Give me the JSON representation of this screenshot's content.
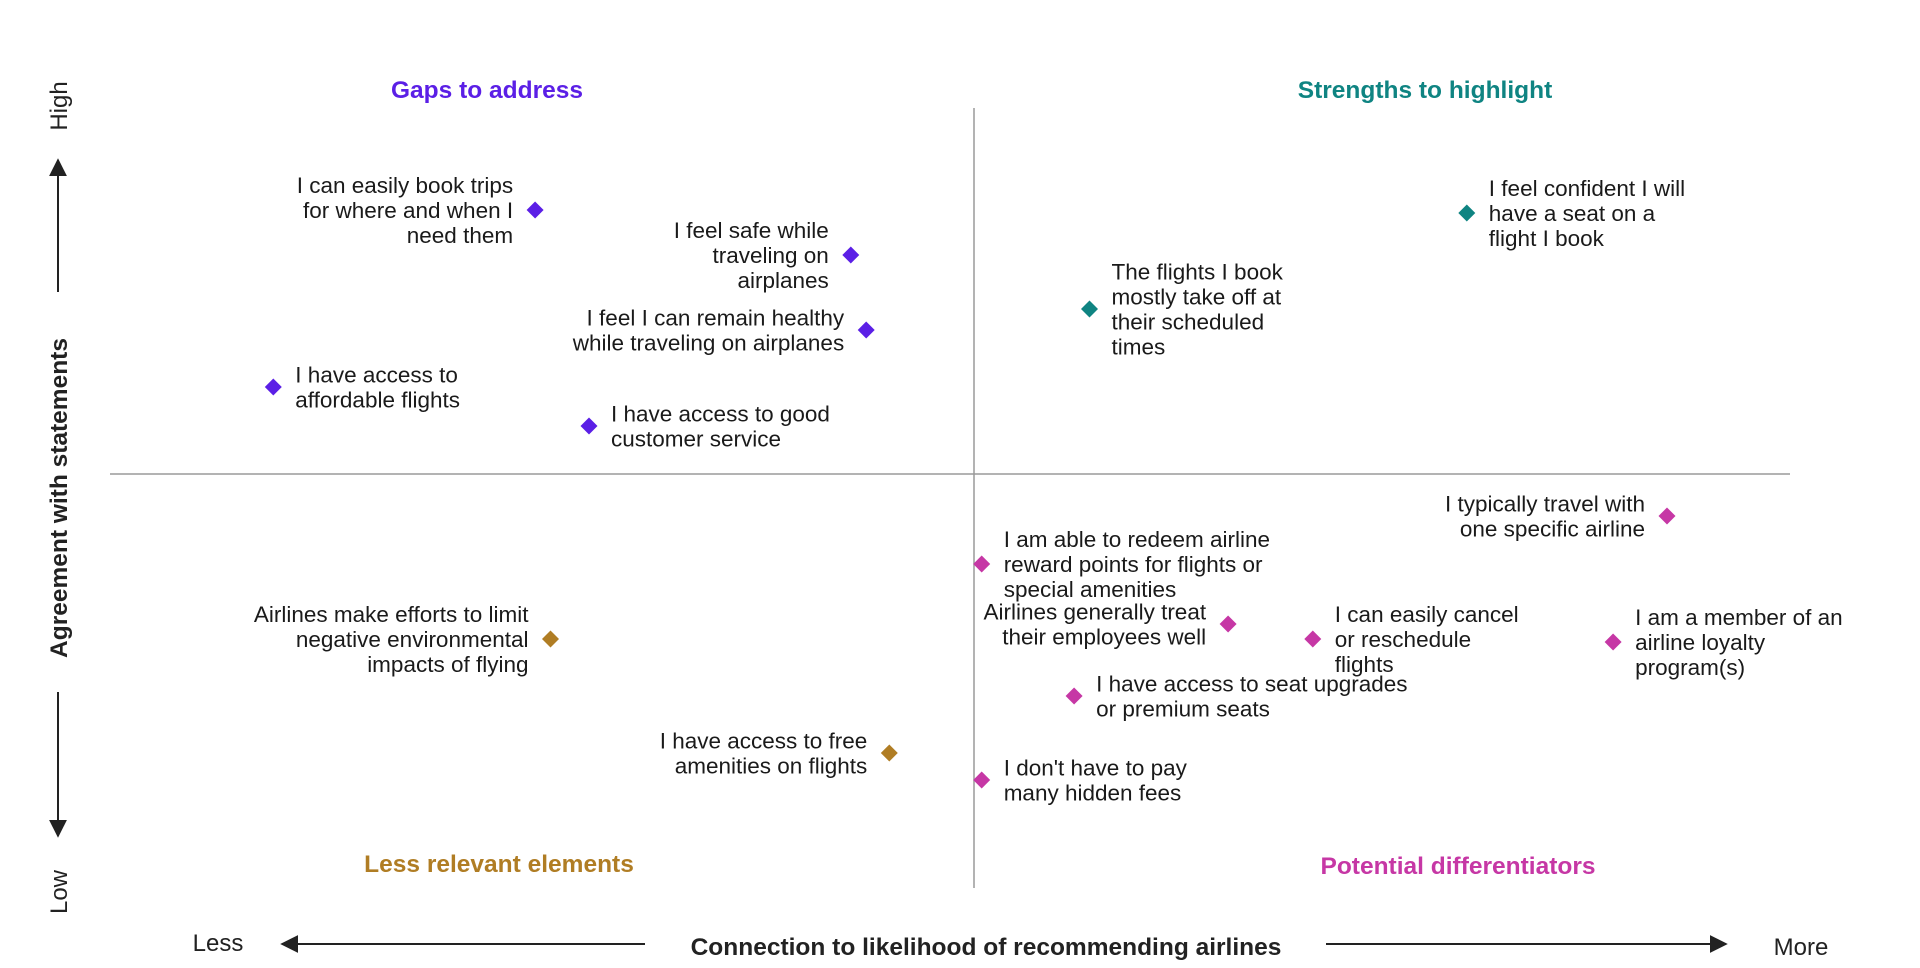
{
  "chart_data": {
    "type": "scatter",
    "xlabel": "Connection to likelihood of recommending airlines",
    "ylabel": "Agreement with statements",
    "x_low_label": "Less",
    "x_high_label": "More",
    "y_low_label": "Low",
    "y_high_label": "High",
    "grid": false,
    "quadrants": [
      {
        "name": "Gaps to address",
        "position": "top-left",
        "color": "#5b1fe6"
      },
      {
        "name": "Strengths to highlight",
        "position": "top-right",
        "color": "#0f8482"
      },
      {
        "name": "Less relevant elements",
        "position": "bottom-left",
        "color": "#b07d24"
      },
      {
        "name": "Potential differentiators",
        "position": "bottom-right",
        "color": "#c637a5"
      }
    ],
    "points": [
      {
        "quadrant": 0,
        "x": -0.57,
        "y": 0.88,
        "label_side": "left",
        "lines": [
          "I can easily book trips",
          "for where and when I",
          "need them"
        ]
      },
      {
        "quadrant": 0,
        "x": -0.16,
        "y": 0.73,
        "label_side": "left",
        "lines": [
          "I feel safe while",
          "traveling on",
          "airplanes"
        ]
      },
      {
        "quadrant": 0,
        "x": -0.14,
        "y": 0.48,
        "label_side": "left",
        "lines": [
          "I feel I can remain healthy",
          "while traveling on airplanes"
        ]
      },
      {
        "quadrant": 0,
        "x": -0.91,
        "y": 0.29,
        "label_side": "right",
        "lines": [
          "I have access to",
          "affordable flights"
        ]
      },
      {
        "quadrant": 0,
        "x": -0.5,
        "y": 0.16,
        "label_side": "right",
        "lines": [
          "I have access to good",
          "customer service"
        ]
      },
      {
        "quadrant": 1,
        "x": 0.64,
        "y": 0.87,
        "label_side": "right",
        "lines": [
          "I feel confident I will",
          "have a seat on a",
          "flight I book"
        ]
      },
      {
        "quadrant": 1,
        "x": 0.15,
        "y": 0.55,
        "label_side": "right",
        "lines": [
          "The flights I book",
          "mostly take off at",
          "their scheduled",
          "times"
        ]
      },
      {
        "quadrant": 2,
        "x": -0.55,
        "y": -0.55,
        "label_side": "left",
        "lines": [
          "Airlines make efforts to limit",
          "negative environmental",
          "impacts of flying"
        ]
      },
      {
        "quadrant": 2,
        "x": -0.11,
        "y": -0.93,
        "label_side": "left",
        "lines": [
          "I have access to free",
          "amenities on flights"
        ]
      },
      {
        "quadrant": 3,
        "x": 0.9,
        "y": -0.14,
        "label_side": "left",
        "lines": [
          "I typically travel with",
          "one specific airline"
        ]
      },
      {
        "quadrant": 3,
        "x": 0.01,
        "y": -0.3,
        "label_side": "right",
        "lines": [
          "I am able to redeem airline",
          "reward points for flights or",
          "special amenities"
        ]
      },
      {
        "quadrant": 3,
        "x": 0.33,
        "y": -0.5,
        "label_side": "left",
        "lines": [
          "Airlines generally treat",
          "their employees well"
        ]
      },
      {
        "quadrant": 3,
        "x": 0.44,
        "y": -0.55,
        "label_side": "right",
        "lines": [
          "I can easily cancel",
          "or reschedule",
          "flights"
        ]
      },
      {
        "quadrant": 3,
        "x": 0.83,
        "y": -0.56,
        "label_side": "right",
        "lines": [
          "I am a member of an",
          "airline loyalty",
          "program(s)"
        ]
      },
      {
        "quadrant": 3,
        "x": 0.13,
        "y": -0.74,
        "label_side": "right",
        "lines": [
          "I have access to seat upgrades",
          "or premium seats"
        ]
      },
      {
        "quadrant": 3,
        "x": 0.01,
        "y": -1.02,
        "label_side": "right",
        "lines": [
          "I don't have to pay",
          "many hidden fees"
        ]
      }
    ]
  }
}
